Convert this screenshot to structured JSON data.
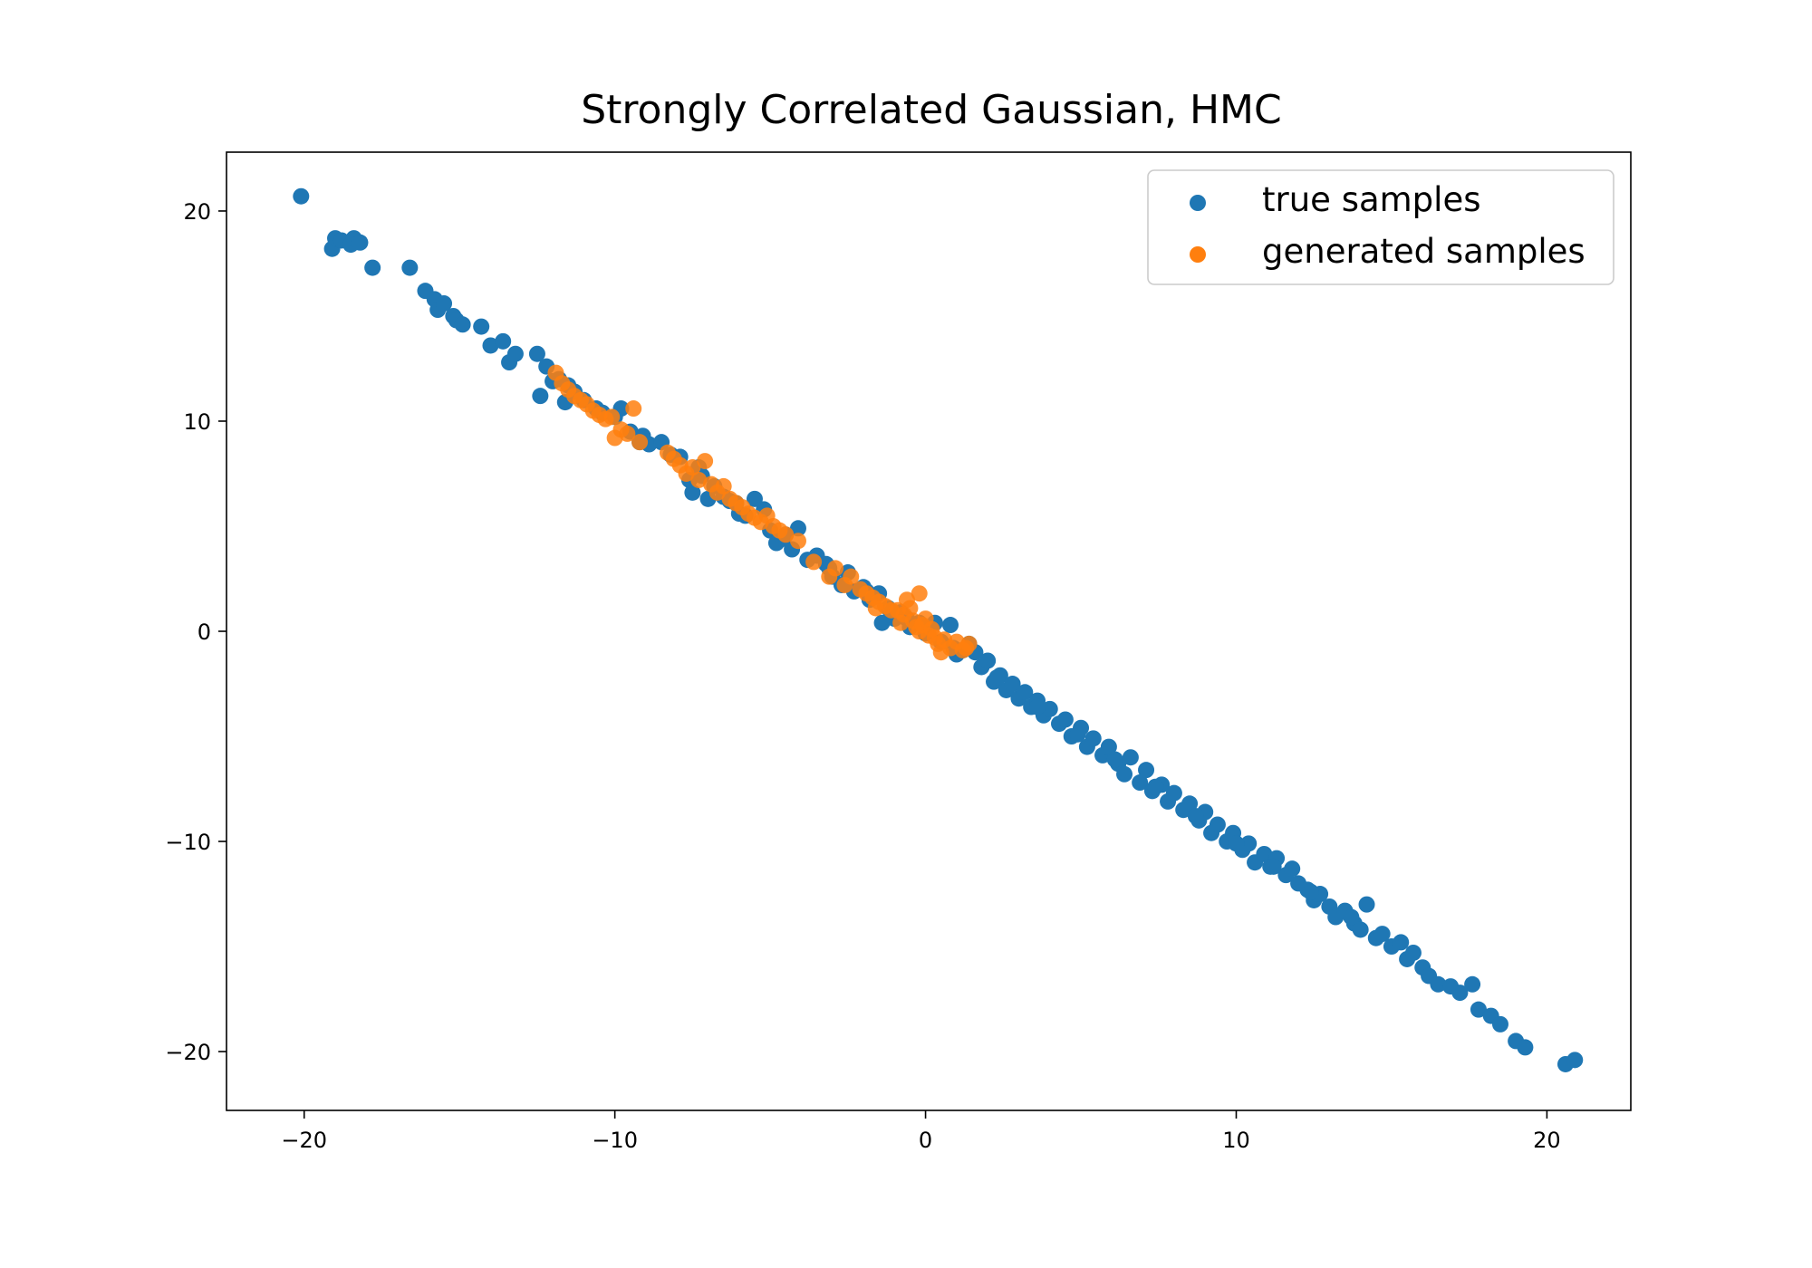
{
  "chart_data": {
    "type": "scatter",
    "title": "Strongly Correlated Gaussian, HMC",
    "xlabel": "",
    "ylabel": "",
    "xlim": [
      -22.5,
      22.7
    ],
    "ylim": [
      -22.8,
      22.8
    ],
    "x_ticks": [
      -20,
      -10,
      0,
      10,
      20
    ],
    "y_ticks": [
      -20,
      -10,
      0,
      10,
      20
    ],
    "x_tick_labels": [
      "−20",
      "−10",
      "0",
      "10",
      "20"
    ],
    "y_tick_labels": [
      "−20",
      "−10",
      "0",
      "10",
      "20"
    ],
    "grid": false,
    "legend_position": "top-right",
    "series": [
      {
        "name": "true samples",
        "color": "#1f77b4",
        "marker": "circle",
        "points": [
          [
            -20.1,
            20.7
          ],
          [
            -19.1,
            18.2
          ],
          [
            -19.0,
            18.7
          ],
          [
            -18.8,
            18.6
          ],
          [
            -18.5,
            18.4
          ],
          [
            -18.4,
            18.7
          ],
          [
            -18.2,
            18.5
          ],
          [
            -17.8,
            17.3
          ],
          [
            -16.6,
            17.3
          ],
          [
            -16.1,
            16.2
          ],
          [
            -15.8,
            15.8
          ],
          [
            -15.7,
            15.3
          ],
          [
            -15.5,
            15.6
          ],
          [
            -15.2,
            15.0
          ],
          [
            -15.1,
            14.8
          ],
          [
            -14.9,
            14.6
          ],
          [
            -14.3,
            14.5
          ],
          [
            -14.0,
            13.6
          ],
          [
            -13.6,
            13.8
          ],
          [
            -13.4,
            12.8
          ],
          [
            -13.2,
            13.2
          ],
          [
            -12.5,
            13.2
          ],
          [
            -12.4,
            11.2
          ],
          [
            -12.2,
            12.6
          ],
          [
            -12.0,
            11.9
          ],
          [
            -11.8,
            12.0
          ],
          [
            -11.6,
            10.9
          ],
          [
            -11.3,
            11.4
          ],
          [
            -11.0,
            11.0
          ],
          [
            -10.6,
            10.6
          ],
          [
            -10.4,
            10.4
          ],
          [
            -10.0,
            10.2
          ],
          [
            -9.8,
            10.6
          ],
          [
            -9.5,
            9.5
          ],
          [
            -9.1,
            9.3
          ],
          [
            -8.9,
            8.9
          ],
          [
            -8.5,
            9.0
          ],
          [
            -8.2,
            8.4
          ],
          [
            -7.9,
            8.3
          ],
          [
            -7.6,
            7.2
          ],
          [
            -7.5,
            6.6
          ],
          [
            -7.3,
            7.8
          ],
          [
            -7.0,
            6.3
          ],
          [
            -6.8,
            6.9
          ],
          [
            -6.5,
            6.4
          ],
          [
            -6.3,
            6.2
          ],
          [
            -6.0,
            5.6
          ],
          [
            -5.8,
            5.5
          ],
          [
            -5.5,
            6.3
          ],
          [
            -5.2,
            5.8
          ],
          [
            -5.0,
            4.8
          ],
          [
            -4.8,
            4.2
          ],
          [
            -4.5,
            4.6
          ],
          [
            -4.3,
            3.9
          ],
          [
            -4.1,
            4.9
          ],
          [
            -3.8,
            3.4
          ],
          [
            -3.5,
            3.6
          ],
          [
            -3.2,
            3.2
          ],
          [
            -3.0,
            2.6
          ],
          [
            -2.7,
            2.2
          ],
          [
            -2.5,
            2.8
          ],
          [
            -2.3,
            1.9
          ],
          [
            -2.0,
            2.1
          ],
          [
            -1.8,
            1.5
          ],
          [
            -1.5,
            1.8
          ],
          [
            -1.4,
            0.4
          ],
          [
            -1.2,
            1.1
          ],
          [
            -1.0,
            0.6
          ],
          [
            -0.8,
            0.9
          ],
          [
            -0.5,
            0.2
          ],
          [
            -0.2,
            0.4
          ],
          [
            0.0,
            -0.1
          ],
          [
            0.3,
            0.4
          ],
          [
            0.5,
            -0.5
          ],
          [
            0.8,
            0.3
          ],
          [
            0.9,
            -0.8
          ],
          [
            1.2,
            -0.9
          ],
          [
            1.4,
            -0.6
          ],
          [
            1.6,
            -1.0
          ],
          [
            1.8,
            -1.7
          ],
          [
            2.0,
            -1.4
          ],
          [
            2.2,
            -2.4
          ],
          [
            2.4,
            -2.1
          ],
          [
            2.6,
            -2.8
          ],
          [
            2.8,
            -2.5
          ],
          [
            3.0,
            -3.2
          ],
          [
            3.2,
            -2.9
          ],
          [
            3.4,
            -3.6
          ],
          [
            3.6,
            -3.3
          ],
          [
            3.8,
            -4.0
          ],
          [
            4.0,
            -3.7
          ],
          [
            4.3,
            -4.4
          ],
          [
            4.5,
            -4.2
          ],
          [
            4.7,
            -5.0
          ],
          [
            5.0,
            -4.6
          ],
          [
            5.2,
            -5.5
          ],
          [
            5.4,
            -5.1
          ],
          [
            5.7,
            -5.9
          ],
          [
            5.9,
            -5.5
          ],
          [
            6.2,
            -6.3
          ],
          [
            6.4,
            -6.8
          ],
          [
            6.6,
            -6.0
          ],
          [
            6.9,
            -7.2
          ],
          [
            7.1,
            -6.6
          ],
          [
            7.3,
            -7.6
          ],
          [
            7.6,
            -7.3
          ],
          [
            7.8,
            -8.1
          ],
          [
            8.0,
            -7.7
          ],
          [
            8.3,
            -8.5
          ],
          [
            8.5,
            -8.2
          ],
          [
            8.8,
            -9.0
          ],
          [
            9.0,
            -8.6
          ],
          [
            9.2,
            -9.6
          ],
          [
            9.4,
            -9.2
          ],
          [
            9.7,
            -10.0
          ],
          [
            9.9,
            -9.6
          ],
          [
            10.2,
            -10.4
          ],
          [
            10.4,
            -10.1
          ],
          [
            10.6,
            -11.0
          ],
          [
            10.9,
            -10.6
          ],
          [
            11.1,
            -11.2
          ],
          [
            11.3,
            -10.8
          ],
          [
            11.6,
            -11.6
          ],
          [
            11.8,
            -11.3
          ],
          [
            12.0,
            -12.0
          ],
          [
            12.3,
            -12.3
          ],
          [
            12.5,
            -12.8
          ],
          [
            12.7,
            -12.5
          ],
          [
            13.0,
            -13.1
          ],
          [
            13.2,
            -13.6
          ],
          [
            13.5,
            -13.3
          ],
          [
            13.8,
            -13.9
          ],
          [
            14.0,
            -14.2
          ],
          [
            14.2,
            -13.0
          ],
          [
            14.5,
            -14.6
          ],
          [
            14.7,
            -14.4
          ],
          [
            15.0,
            -15.0
          ],
          [
            15.3,
            -14.8
          ],
          [
            15.5,
            -15.6
          ],
          [
            15.7,
            -15.3
          ],
          [
            16.0,
            -16.0
          ],
          [
            16.2,
            -16.4
          ],
          [
            16.5,
            -16.8
          ],
          [
            16.9,
            -16.9
          ],
          [
            17.2,
            -17.2
          ],
          [
            17.6,
            -16.8
          ],
          [
            17.8,
            -18.0
          ],
          [
            18.2,
            -18.3
          ],
          [
            18.5,
            -18.7
          ],
          [
            19.0,
            -19.5
          ],
          [
            19.3,
            -19.8
          ],
          [
            20.6,
            -20.6
          ],
          [
            20.9,
            -20.4
          ],
          [
            -11.5,
            11.7
          ],
          [
            -9.2,
            9.0
          ],
          [
            -7.2,
            7.4
          ],
          [
            -6.1,
            6.1
          ],
          [
            -4.6,
            4.4
          ],
          [
            -3.1,
            3.0
          ],
          [
            -1.9,
            1.9
          ],
          [
            -0.6,
            0.6
          ],
          [
            1.0,
            -1.1
          ],
          [
            2.3,
            -2.2
          ],
          [
            3.6,
            -3.6
          ],
          [
            4.9,
            -4.9
          ],
          [
            6.1,
            -6.1
          ],
          [
            7.4,
            -7.4
          ],
          [
            8.7,
            -8.8
          ],
          [
            10.0,
            -10.1
          ],
          [
            11.2,
            -11.2
          ],
          [
            12.4,
            -12.4
          ],
          [
            13.7,
            -13.6
          ]
        ]
      },
      {
        "name": "generated samples",
        "color": "#ff7f0e",
        "marker": "circle",
        "points": [
          [
            -11.9,
            12.3
          ],
          [
            -11.7,
            11.8
          ],
          [
            -11.5,
            11.5
          ],
          [
            -11.3,
            11.2
          ],
          [
            -11.1,
            11.0
          ],
          [
            -10.9,
            10.8
          ],
          [
            -10.7,
            10.5
          ],
          [
            -10.5,
            10.3
          ],
          [
            -10.3,
            10.1
          ],
          [
            -10.1,
            10.2
          ],
          [
            -10.0,
            9.2
          ],
          [
            -9.8,
            9.6
          ],
          [
            -9.6,
            9.4
          ],
          [
            -9.4,
            10.6
          ],
          [
            -9.2,
            9.0
          ],
          [
            -8.3,
            8.5
          ],
          [
            -8.1,
            8.2
          ],
          [
            -7.9,
            7.9
          ],
          [
            -7.7,
            7.5
          ],
          [
            -7.5,
            7.8
          ],
          [
            -7.3,
            7.2
          ],
          [
            -7.1,
            8.1
          ],
          [
            -6.9,
            7.0
          ],
          [
            -6.7,
            6.6
          ],
          [
            -6.5,
            6.9
          ],
          [
            -6.3,
            6.3
          ],
          [
            -6.1,
            6.1
          ],
          [
            -5.9,
            5.9
          ],
          [
            -5.7,
            5.6
          ],
          [
            -5.5,
            5.4
          ],
          [
            -5.3,
            5.2
          ],
          [
            -5.1,
            5.5
          ],
          [
            -4.9,
            5.0
          ],
          [
            -4.7,
            4.8
          ],
          [
            -4.5,
            4.6
          ],
          [
            -4.1,
            4.3
          ],
          [
            -3.6,
            3.3
          ],
          [
            -3.1,
            2.6
          ],
          [
            -2.9,
            3.0
          ],
          [
            -2.4,
            2.6
          ],
          [
            -2.1,
            2.0
          ],
          [
            -1.9,
            1.8
          ],
          [
            -1.7,
            1.6
          ],
          [
            -1.5,
            1.4
          ],
          [
            -1.3,
            1.2
          ],
          [
            -1.1,
            1.0
          ],
          [
            -0.9,
            1.0
          ],
          [
            -0.7,
            0.8
          ],
          [
            -0.5,
            1.1
          ],
          [
            -0.4,
            0.5
          ],
          [
            -0.3,
            0.2
          ],
          [
            -0.2,
            0.0
          ],
          [
            -0.1,
            0.3
          ],
          [
            0.0,
            0.6
          ],
          [
            0.1,
            -0.2
          ],
          [
            0.2,
            0.1
          ],
          [
            0.3,
            -0.3
          ],
          [
            0.4,
            -0.6
          ],
          [
            0.6,
            -0.4
          ],
          [
            0.8,
            -0.8
          ],
          [
            1.0,
            -0.5
          ],
          [
            1.2,
            -0.9
          ],
          [
            1.4,
            -0.6
          ],
          [
            -2.6,
            2.2
          ],
          [
            -1.6,
            1.1
          ],
          [
            -0.8,
            0.4
          ],
          [
            -0.6,
            1.5
          ],
          [
            -0.2,
            1.8
          ],
          [
            0.5,
            -1.0
          ],
          [
            1.3,
            -0.8
          ]
        ]
      }
    ]
  },
  "figure": {
    "title": "Strongly Correlated Gaussian, HMC",
    "legend": [
      {
        "label": "true samples",
        "color": "#1f77b4"
      },
      {
        "label": "generated samples",
        "color": "#ff7f0e"
      }
    ]
  }
}
